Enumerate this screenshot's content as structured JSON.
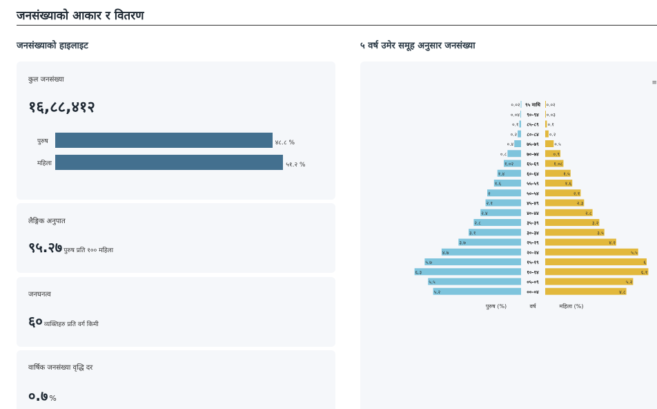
{
  "page": {
    "title": "जनसंख्याको आकार र वितरण"
  },
  "highlights": {
    "section_title": "जनसंख्याको हाइलाइट",
    "total": {
      "label": "कुल जनसंख्या",
      "value": "१६,८८,४१२",
      "male_label": "पुरुष",
      "female_label": "महिला",
      "male_pct": 48.8,
      "female_pct": 51.2,
      "male_pct_text": "४८.८ %",
      "female_pct_text": "५१.२ %"
    },
    "sex_ratio": {
      "label": "लैङ्गिक अनुपात",
      "value": "९५.२७",
      "unit": "पुरुष प्रति १०० महिला"
    },
    "density": {
      "label": "जनघनत्व",
      "value": "६०",
      "unit": "व्यक्तिहरु प्रति वर्ग किमी"
    },
    "growth": {
      "label": "वार्षिक जनसंख्या वृद्धि दर",
      "value": "०.७",
      "unit": "%"
    }
  },
  "pyramid": {
    "section_title": "५ वर्ष उमेर समूह अनुसार जनसंख्या",
    "corner_mark": "≡"
  },
  "chart_data": {
    "type": "bar",
    "orientation": "horizontal",
    "layout": "population-pyramid",
    "categories": [
      "९५ माथि",
      "९०-९४",
      "८५-८९",
      "८०-८४",
      "७५-७९",
      "७०-७४",
      "६५-६९",
      "६०-६४",
      "५५-५९",
      "५०-५४",
      "४५-४९",
      "४०-४४",
      "३५-३९",
      "३०-३४",
      "२५-२९",
      "२०-२४",
      "१५-१९",
      "१०-१४",
      "०५-०९",
      "००-०४"
    ],
    "category_axis_label": "वर्ष",
    "series": [
      {
        "name": "पुरुष (%)",
        "color": "#7ec4dc",
        "values": [
          0.02,
          0.04,
          0.1,
          0.2,
          0.4,
          0.8,
          1.02,
          1.4,
          1.6,
          2,
          2.1,
          2.4,
          2.8,
          3.1,
          3.7,
          4.7,
          5.7,
          6.3,
          5.5,
          5.2
        ],
        "labels": [
          "०.०२",
          "०.०४",
          "०.१",
          "०.२",
          "०.४",
          "०.८",
          "१.०२",
          "१.४",
          "१.६",
          "२",
          "२.१",
          "२.४",
          "२.८",
          "३.१",
          "३.७",
          "४.७",
          "५.७",
          "६.३",
          "५.५",
          "५.२"
        ]
      },
      {
        "name": "महिला (%)",
        "color": "#e2b83c",
        "values": [
          0.02,
          0.03,
          0.1,
          0.2,
          0.5,
          0.9,
          1.08,
          1.5,
          1.6,
          2.1,
          2.3,
          2.8,
          3.2,
          3.5,
          4.2,
          5.5,
          6,
          6.1,
          5.2,
          4.8
        ],
        "labels": [
          "०.०२",
          "०.०३",
          "०.१",
          "०.२",
          "०.५",
          "०.९",
          "१.०८",
          "१.५",
          "१.६",
          "२.१",
          "२.३",
          "२.८",
          "३.२",
          "३.५",
          "४.२",
          "५.५",
          "६",
          "६.१",
          "५.२",
          "४.८"
        ]
      }
    ],
    "max_value": 6.4,
    "legend_position": "bottom",
    "grid": false
  }
}
